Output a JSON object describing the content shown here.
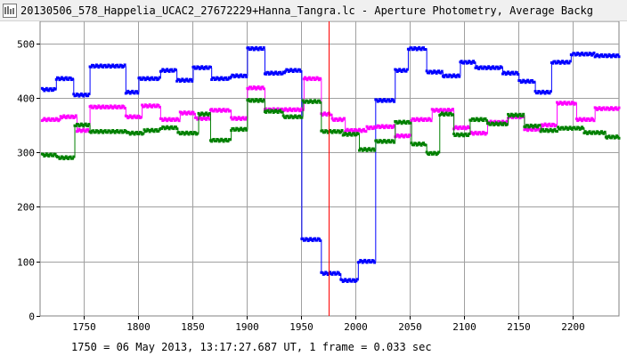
{
  "window": {
    "title": "20130506_578_Happelia_UCAC2_27672229+Hanna_Tangra.lc - Aperture Photometry, Average Backg",
    "icon": "lightcurve-app-icon"
  },
  "footer": {
    "info": "1750 = 06 May 2013, 13:17:27.687 UT, 1 frame = 0.033 sec"
  },
  "colors": {
    "grid": "#a0a0a0",
    "cursor": "#ff0000",
    "blue": "#0000ff",
    "magenta": "#ff00ff",
    "green": "#008000"
  },
  "chart_data": {
    "type": "scatter",
    "xlim": [
      1710,
      2243
    ],
    "ylim": [
      0,
      540
    ],
    "x_ticks": [
      1750,
      1800,
      1850,
      1900,
      1950,
      2000,
      2050,
      2100,
      2150,
      2200
    ],
    "y_ticks": [
      0,
      100,
      200,
      300,
      400,
      500
    ],
    "grid": true,
    "cursor_x": 1976,
    "series": [
      {
        "color": "blue",
        "segments": [
          [
            1712,
            1724,
            415
          ],
          [
            1725,
            1740,
            435
          ],
          [
            1741,
            1755,
            405
          ],
          [
            1756,
            1788,
            458
          ],
          [
            1789,
            1800,
            410
          ],
          [
            1801,
            1820,
            435
          ],
          [
            1821,
            1835,
            450
          ],
          [
            1836,
            1850,
            432
          ],
          [
            1851,
            1867,
            455
          ],
          [
            1868,
            1885,
            435
          ],
          [
            1886,
            1900,
            440
          ],
          [
            1901,
            1916,
            490
          ],
          [
            1917,
            1935,
            445
          ],
          [
            1936,
            1950,
            450
          ],
          [
            1951,
            1968,
            140
          ],
          [
            1969,
            1986,
            78
          ],
          [
            1987,
            2002,
            65
          ],
          [
            2003,
            2018,
            100
          ],
          [
            2019,
            2036,
            395
          ],
          [
            2037,
            2048,
            450
          ],
          [
            2049,
            2065,
            490
          ],
          [
            2066,
            2080,
            447
          ],
          [
            2081,
            2096,
            440
          ],
          [
            2097,
            2110,
            465
          ],
          [
            2111,
            2135,
            455
          ],
          [
            2136,
            2150,
            445
          ],
          [
            2151,
            2165,
            430
          ],
          [
            2166,
            2180,
            410
          ],
          [
            2181,
            2198,
            465
          ],
          [
            2199,
            2220,
            480
          ],
          [
            2221,
            2243,
            477
          ]
        ]
      },
      {
        "color": "magenta",
        "segments": [
          [
            1712,
            1728,
            360
          ],
          [
            1729,
            1743,
            365
          ],
          [
            1744,
            1755,
            340
          ],
          [
            1756,
            1788,
            383
          ],
          [
            1789,
            1803,
            365
          ],
          [
            1804,
            1820,
            385
          ],
          [
            1821,
            1838,
            360
          ],
          [
            1839,
            1852,
            372
          ],
          [
            1853,
            1866,
            362
          ],
          [
            1867,
            1885,
            377
          ],
          [
            1886,
            1900,
            362
          ],
          [
            1901,
            1916,
            418
          ],
          [
            1917,
            1952,
            378
          ],
          [
            1953,
            1968,
            435
          ],
          [
            1969,
            1978,
            370
          ],
          [
            1979,
            1990,
            360
          ],
          [
            1991,
            2010,
            340
          ],
          [
            2011,
            2018,
            345
          ],
          [
            2019,
            2036,
            347
          ],
          [
            2037,
            2051,
            330
          ],
          [
            2052,
            2070,
            360
          ],
          [
            2071,
            2090,
            377
          ],
          [
            2091,
            2105,
            345
          ],
          [
            2106,
            2121,
            335
          ],
          [
            2122,
            2140,
            355
          ],
          [
            2141,
            2155,
            365
          ],
          [
            2156,
            2171,
            342
          ],
          [
            2172,
            2185,
            350
          ],
          [
            2186,
            2203,
            390
          ],
          [
            2204,
            2220,
            360
          ],
          [
            2221,
            2243,
            380
          ]
        ]
      },
      {
        "color": "green",
        "segments": [
          [
            1712,
            1725,
            295
          ],
          [
            1726,
            1741,
            290
          ],
          [
            1742,
            1755,
            350
          ],
          [
            1756,
            1790,
            338
          ],
          [
            1791,
            1805,
            335
          ],
          [
            1806,
            1820,
            340
          ],
          [
            1821,
            1836,
            345
          ],
          [
            1837,
            1855,
            335
          ],
          [
            1856,
            1866,
            370
          ],
          [
            1867,
            1885,
            322
          ],
          [
            1886,
            1900,
            342
          ],
          [
            1901,
            1916,
            395
          ],
          [
            1917,
            1933,
            375
          ],
          [
            1934,
            1951,
            365
          ],
          [
            1952,
            1968,
            393
          ],
          [
            1969,
            1988,
            338
          ],
          [
            1989,
            2003,
            333
          ],
          [
            2004,
            2018,
            305
          ],
          [
            2019,
            2036,
            320
          ],
          [
            2037,
            2051,
            355
          ],
          [
            2052,
            2065,
            315
          ],
          [
            2066,
            2077,
            298
          ],
          [
            2078,
            2090,
            370
          ],
          [
            2091,
            2105,
            332
          ],
          [
            2106,
            2121,
            360
          ],
          [
            2122,
            2140,
            352
          ],
          [
            2141,
            2155,
            368
          ],
          [
            2156,
            2170,
            348
          ],
          [
            2171,
            2186,
            340
          ],
          [
            2187,
            2210,
            344
          ],
          [
            2211,
            2230,
            336
          ],
          [
            2231,
            2243,
            328
          ]
        ]
      }
    ]
  }
}
